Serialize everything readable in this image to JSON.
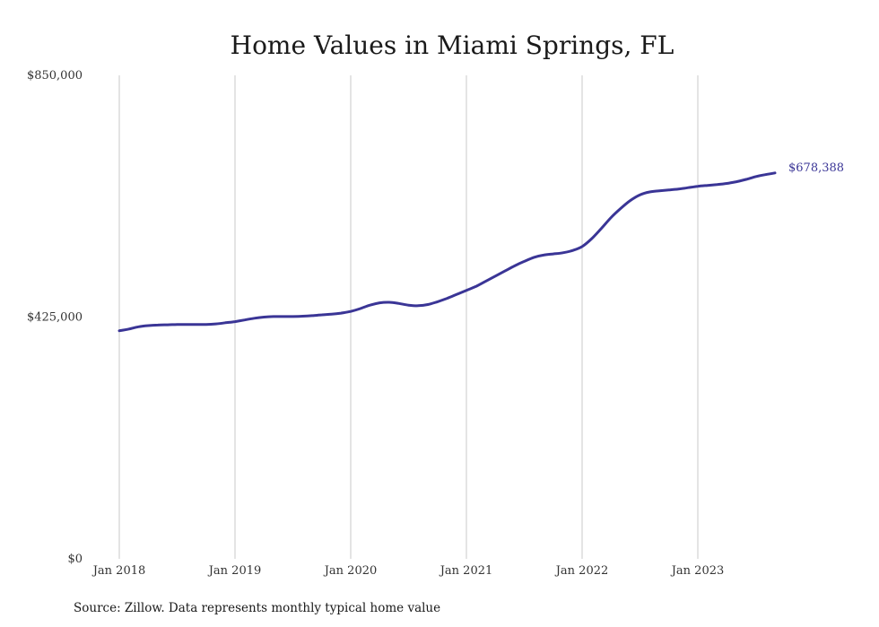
{
  "chart_data": {
    "type": "line",
    "title": "Home Values in Miami Springs, FL",
    "source": "Source: Zillow. Data represents monthly typical home value",
    "xlabel": "",
    "ylabel": "",
    "x_ticks": [
      "Jan 2018",
      "Jan 2019",
      "Jan 2020",
      "Jan 2021",
      "Jan 2022",
      "Jan 2023"
    ],
    "y_ticks": [
      "$850,000",
      "$425,000",
      "$0"
    ],
    "ylim": [
      0,
      850000
    ],
    "grid": "vertical lines at January of each year",
    "line_color": "#3a3596",
    "end_label": "$678,388",
    "series": [
      {
        "values": [
          [
            "2018-01",
            401000
          ],
          [
            "2018-02",
            404000
          ],
          [
            "2018-03",
            408000
          ],
          [
            "2018-04",
            410000
          ],
          [
            "2018-05",
            411000
          ],
          [
            "2018-06",
            411500
          ],
          [
            "2018-07",
            412000
          ],
          [
            "2018-08",
            412000
          ],
          [
            "2018-09",
            412000
          ],
          [
            "2018-10",
            412000
          ],
          [
            "2018-11",
            413000
          ],
          [
            "2018-12",
            415000
          ],
          [
            "2019-01",
            417000
          ],
          [
            "2019-02",
            420000
          ],
          [
            "2019-03",
            423000
          ],
          [
            "2019-04",
            425000
          ],
          [
            "2019-05",
            426000
          ],
          [
            "2019-06",
            426000
          ],
          [
            "2019-07",
            426000
          ],
          [
            "2019-08",
            426500
          ],
          [
            "2019-09",
            427500
          ],
          [
            "2019-10",
            429000
          ],
          [
            "2019-11",
            430000
          ],
          [
            "2019-12",
            432000
          ],
          [
            "2020-01",
            435000
          ],
          [
            "2020-02",
            440000
          ],
          [
            "2020-03",
            446000
          ],
          [
            "2020-04",
            450000
          ],
          [
            "2020-05",
            451000
          ],
          [
            "2020-06",
            449000
          ],
          [
            "2020-07",
            446000
          ],
          [
            "2020-08",
            445000
          ],
          [
            "2020-09",
            447000
          ],
          [
            "2020-10",
            452000
          ],
          [
            "2020-11",
            458000
          ],
          [
            "2020-12",
            465000
          ],
          [
            "2021-01",
            472000
          ],
          [
            "2021-02",
            479000
          ],
          [
            "2021-03",
            488000
          ],
          [
            "2021-04",
            497000
          ],
          [
            "2021-05",
            506000
          ],
          [
            "2021-06",
            515000
          ],
          [
            "2021-07",
            523000
          ],
          [
            "2021-08",
            530000
          ],
          [
            "2021-09",
            534000
          ],
          [
            "2021-10",
            536000
          ],
          [
            "2021-11",
            538000
          ],
          [
            "2021-12",
            542000
          ],
          [
            "2022-01",
            549000
          ],
          [
            "2022-02",
            563000
          ],
          [
            "2022-03",
            581000
          ],
          [
            "2022-04",
            600000
          ],
          [
            "2022-05",
            616000
          ],
          [
            "2022-06",
            630000
          ],
          [
            "2022-07",
            640000
          ],
          [
            "2022-08",
            645000
          ],
          [
            "2022-09",
            647000
          ],
          [
            "2022-10",
            648500
          ],
          [
            "2022-11",
            650000
          ],
          [
            "2022-12",
            652500
          ],
          [
            "2023-01",
            655000
          ],
          [
            "2023-02",
            656500
          ],
          [
            "2023-03",
            658000
          ],
          [
            "2023-04",
            660000
          ],
          [
            "2023-05",
            663000
          ],
          [
            "2023-06",
            667000
          ],
          [
            "2023-07",
            672000
          ],
          [
            "2023-08",
            675500
          ],
          [
            "2023-09",
            678388
          ]
        ]
      }
    ]
  }
}
